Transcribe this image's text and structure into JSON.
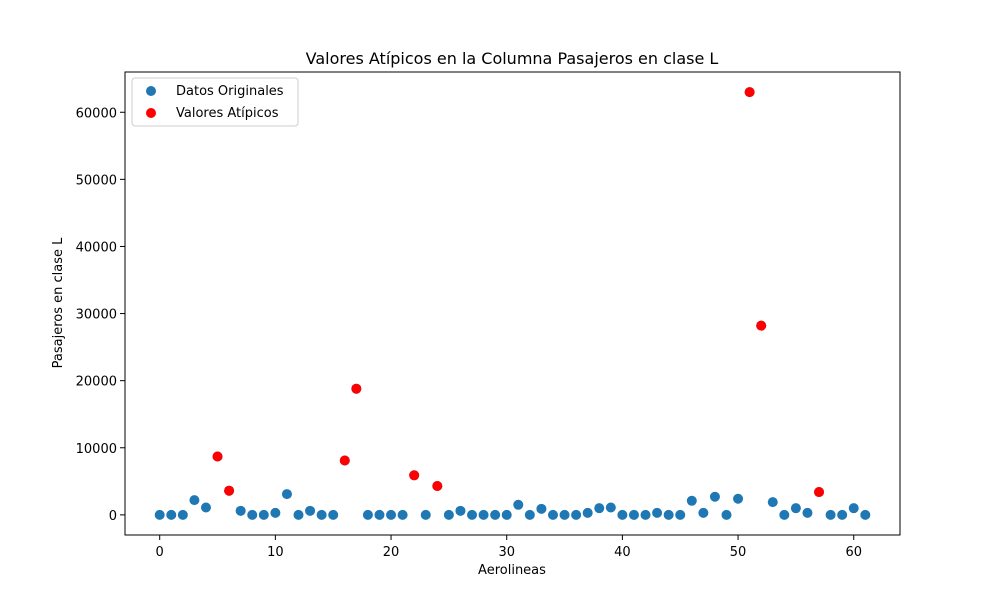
{
  "chart_data": {
    "type": "scatter",
    "title": "Valores Atípicos en la Columna Pasajeros en clase L",
    "xlabel": "Aerolineas",
    "ylabel": "Pasajeros en clase L",
    "xlim": [
      -3,
      64
    ],
    "ylim": [
      -3000,
      66000
    ],
    "xticks": [
      0,
      10,
      20,
      30,
      40,
      50,
      60
    ],
    "yticks": [
      0,
      10000,
      20000,
      30000,
      40000,
      50000,
      60000
    ],
    "grid": false,
    "legend_position": "top-left",
    "series": [
      {
        "name": "Datos Originales",
        "color": "#1f77b4",
        "points": [
          [
            0,
            0
          ],
          [
            1,
            0
          ],
          [
            2,
            0
          ],
          [
            3,
            2200
          ],
          [
            4,
            1100
          ],
          [
            5,
            8700
          ],
          [
            6,
            3600
          ],
          [
            7,
            600
          ],
          [
            8,
            0
          ],
          [
            9,
            0
          ],
          [
            10,
            300
          ],
          [
            11,
            3100
          ],
          [
            12,
            0
          ],
          [
            13,
            600
          ],
          [
            14,
            0
          ],
          [
            15,
            0
          ],
          [
            16,
            8100
          ],
          [
            17,
            18800
          ],
          [
            18,
            0
          ],
          [
            19,
            0
          ],
          [
            20,
            0
          ],
          [
            21,
            0
          ],
          [
            22,
            5900
          ],
          [
            23,
            0
          ],
          [
            24,
            4300
          ],
          [
            25,
            0
          ],
          [
            26,
            600
          ],
          [
            27,
            0
          ],
          [
            28,
            0
          ],
          [
            29,
            0
          ],
          [
            30,
            0
          ],
          [
            31,
            1500
          ],
          [
            32,
            0
          ],
          [
            33,
            900
          ],
          [
            34,
            0
          ],
          [
            35,
            0
          ],
          [
            36,
            0
          ],
          [
            37,
            300
          ],
          [
            38,
            1000
          ],
          [
            39,
            1100
          ],
          [
            40,
            0
          ],
          [
            41,
            0
          ],
          [
            42,
            0
          ],
          [
            43,
            300
          ],
          [
            44,
            0
          ],
          [
            45,
            0
          ],
          [
            46,
            2100
          ],
          [
            47,
            300
          ],
          [
            48,
            2700
          ],
          [
            49,
            0
          ],
          [
            50,
            2400
          ],
          [
            51,
            63000
          ],
          [
            52,
            28200
          ],
          [
            53,
            1900
          ],
          [
            54,
            0
          ],
          [
            55,
            1000
          ],
          [
            56,
            300
          ],
          [
            57,
            3400
          ],
          [
            58,
            0
          ],
          [
            59,
            0
          ],
          [
            60,
            1000
          ],
          [
            61,
            0
          ]
        ]
      },
      {
        "name": "Valores Atípicos",
        "color": "#ff0000",
        "points": [
          [
            5,
            8700
          ],
          [
            6,
            3600
          ],
          [
            16,
            8100
          ],
          [
            17,
            18800
          ],
          [
            22,
            5900
          ],
          [
            24,
            4300
          ],
          [
            51,
            63000
          ],
          [
            52,
            28200
          ],
          [
            57,
            3400
          ]
        ]
      }
    ]
  }
}
